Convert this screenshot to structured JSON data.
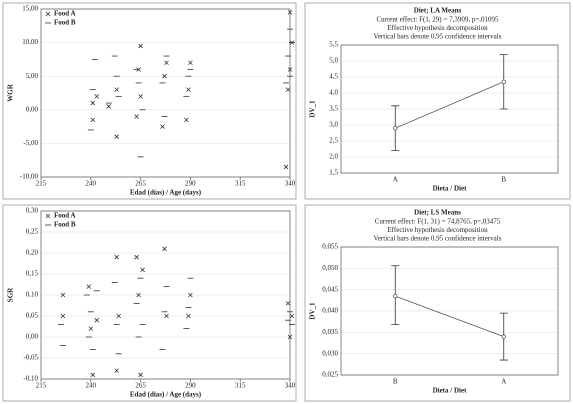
{
  "chart_data": [
    {
      "type": "scatter",
      "x_label": "Edad (días) / Age (days)",
      "y_label": "WGR",
      "xlim": [
        215,
        340
      ],
      "xticks": [
        215,
        240,
        265,
        290,
        315,
        340
      ],
      "ylim": [
        -10,
        15
      ],
      "yticks": [
        {
          "value": -10,
          "label": "-10,00"
        },
        {
          "value": -5,
          "label": "-5,00"
        },
        {
          "value": 0,
          "label": "0,00"
        },
        {
          "value": 5,
          "label": "5,00"
        },
        {
          "value": 10,
          "label": "10,00"
        },
        {
          "value": 15,
          "label": "15,00"
        }
      ],
      "legend": "upper left",
      "series": [
        {
          "name": "Food A",
          "marker": "x",
          "color": "#333333",
          "x": [
            241,
            241,
            243,
            249,
            253,
            253,
            263,
            264,
            265,
            265,
            276,
            277,
            278,
            288,
            289,
            290,
            338,
            339,
            340,
            340,
            341
          ],
          "values": [
            1,
            -1.5,
            2,
            0.5,
            -4,
            3,
            -1,
            6,
            9.5,
            2,
            -2.5,
            5,
            7,
            -1.5,
            3,
            7,
            -8.5,
            3,
            6,
            14.5,
            10
          ]
        },
        {
          "name": "Food B",
          "marker": "dash",
          "color": "#333333",
          "x": [
            240,
            241,
            242,
            249,
            252,
            253,
            254,
            263,
            264,
            265,
            266,
            276,
            277,
            278,
            288,
            289,
            290,
            338,
            339,
            340,
            341,
            340
          ],
          "values": [
            -3,
            3,
            7.5,
            1,
            8,
            5,
            2,
            6,
            4,
            -7,
            0,
            4,
            -1,
            8,
            2,
            5,
            6,
            4,
            8,
            12,
            10,
            5
          ]
        }
      ]
    },
    {
      "type": "line",
      "title": "Diet; LA Means",
      "subtitles": [
        "Current effect: F(1, 29) = 7,3909, p=,01095",
        "Effective hypothesis decomposition",
        "Vertical bars denote 0,95 confidence intervals"
      ],
      "x_label": "Dieta / Diet",
      "y_label": "DV_1",
      "categories": [
        "A",
        "B"
      ],
      "values": [
        2.9,
        4.35
      ],
      "lower": [
        2.2,
        3.5
      ],
      "upper": [
        3.6,
        5.2
      ],
      "color": "#555555",
      "ylim": [
        1.5,
        5.5
      ],
      "yticks": [
        {
          "value": 1.5,
          "label": "1,5"
        },
        {
          "value": 2,
          "label": "2,0"
        },
        {
          "value": 2.5,
          "label": "2,5"
        },
        {
          "value": 3,
          "label": "3,0"
        },
        {
          "value": 3.5,
          "label": "3,5"
        },
        {
          "value": 4,
          "label": "4,0"
        },
        {
          "value": 4.5,
          "label": "4,5"
        },
        {
          "value": 5,
          "label": "5,0"
        },
        {
          "value": 5.5,
          "label": "5,5"
        }
      ]
    },
    {
      "type": "scatter",
      "x_label": "Edad (dias) / Age (days)",
      "y_label": "SGR",
      "xlim": [
        215,
        340
      ],
      "xticks": [
        215,
        240,
        265,
        290,
        315,
        340
      ],
      "ylim": [
        -0.1,
        0.3
      ],
      "yticks": [
        {
          "value": -0.1,
          "label": "-0,10"
        },
        {
          "value": -0.05,
          "label": "-0,05"
        },
        {
          "value": 0,
          "label": "0,00"
        },
        {
          "value": 0.05,
          "label": "0,05"
        },
        {
          "value": 0.1,
          "label": "0,10"
        },
        {
          "value": 0.15,
          "label": "0,15"
        },
        {
          "value": 0.2,
          "label": "0,20"
        },
        {
          "value": 0.25,
          "label": "0,25"
        },
        {
          "value": 0.3,
          "label": "0,30"
        }
      ],
      "legend": "upper left",
      "series": [
        {
          "name": "Food A",
          "marker": "x",
          "color": "#333333",
          "x": [
            226,
            226,
            239,
            240,
            241,
            243,
            253,
            253,
            254,
            263,
            264,
            265,
            266,
            277,
            278,
            289,
            290,
            339,
            340,
            341
          ],
          "values": [
            0.1,
            0.05,
            0.12,
            0.02,
            -0.09,
            0.04,
            0.19,
            -0.08,
            0.05,
            0.19,
            0.1,
            -0.09,
            0.16,
            0.21,
            0.05,
            0.05,
            0.1,
            0.08,
            0,
            0.05
          ]
        },
        {
          "name": "Food B",
          "marker": "dash",
          "color": "#333333",
          "x": [
            225,
            226,
            238,
            239,
            240,
            241,
            243,
            252,
            253,
            254,
            263,
            264,
            265,
            266,
            276,
            277,
            278,
            288,
            289,
            290,
            339,
            340,
            341
          ],
          "values": [
            0.03,
            -0.02,
            0.1,
            0,
            0.06,
            -0.03,
            0.11,
            0.13,
            0.03,
            -0.04,
            0.08,
            0,
            0.14,
            0.03,
            -0.03,
            0.06,
            0.12,
            0.02,
            0.07,
            0.14,
            0.04,
            0.06,
            0.03
          ]
        }
      ]
    },
    {
      "type": "line",
      "title": "Diet; LS Means",
      "subtitles": [
        "Current effect: F(1, 31) = 74,8765, p=,03475",
        "Effective hypothesis decomposition",
        "Vertical bars denote 0,95 confidence intervals"
      ],
      "x_label": "Dieta / Diet",
      "y_label": "DV_1",
      "categories": [
        "B",
        "A"
      ],
      "values": [
        0.0435,
        0.034
      ],
      "lower": [
        0.0368,
        0.0285
      ],
      "upper": [
        0.0506,
        0.0395
      ],
      "color": "#555555",
      "ylim": [
        0.025,
        0.055
      ],
      "yticks": [
        {
          "value": 0.025,
          "label": "0,025"
        },
        {
          "value": 0.03,
          "label": "0,030"
        },
        {
          "value": 0.035,
          "label": "0,035"
        },
        {
          "value": 0.04,
          "label": "0,040"
        },
        {
          "value": 0.045,
          "label": "0,045"
        },
        {
          "value": 0.05,
          "label": "0,050"
        },
        {
          "value": 0.055,
          "label": "0,055"
        }
      ]
    }
  ]
}
